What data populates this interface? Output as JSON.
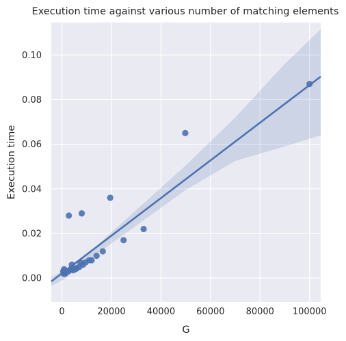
{
  "chart_data": {
    "type": "scatter",
    "title": "Execution time against various number of matching elements",
    "xlabel": "G",
    "ylabel": "Execution time",
    "xlim": [
      -4300,
      104500
    ],
    "ylim": [
      -0.0107,
      0.1145
    ],
    "x_ticks": [
      0,
      20000,
      40000,
      60000,
      80000,
      100000
    ],
    "x_tick_labels": [
      "0",
      "20000",
      "40000",
      "60000",
      "80000",
      "100000"
    ],
    "y_ticks": [
      0.0,
      0.02,
      0.04,
      0.06,
      0.08,
      0.1
    ],
    "y_tick_labels": [
      "0.00",
      "0.02",
      "0.04",
      "0.06",
      "0.08",
      "0.10"
    ],
    "grid": true,
    "points": [
      {
        "x": 500,
        "y": 0.003
      },
      {
        "x": 700,
        "y": 0.002
      },
      {
        "x": 900,
        "y": 0.004
      },
      {
        "x": 1100,
        "y": 0.003
      },
      {
        "x": 1300,
        "y": 0.002
      },
      {
        "x": 1600,
        "y": 0.0025
      },
      {
        "x": 2000,
        "y": 0.003
      },
      {
        "x": 2500,
        "y": 0.003
      },
      {
        "x": 2800,
        "y": 0.028
      },
      {
        "x": 3000,
        "y": 0.0035
      },
      {
        "x": 3600,
        "y": 0.004
      },
      {
        "x": 4000,
        "y": 0.006
      },
      {
        "x": 4500,
        "y": 0.0035
      },
      {
        "x": 5500,
        "y": 0.004
      },
      {
        "x": 6000,
        "y": 0.0045
      },
      {
        "x": 7000,
        "y": 0.005
      },
      {
        "x": 7500,
        "y": 0.007
      },
      {
        "x": 8000,
        "y": 0.029
      },
      {
        "x": 8500,
        "y": 0.006
      },
      {
        "x": 9500,
        "y": 0.007
      },
      {
        "x": 11000,
        "y": 0.008
      },
      {
        "x": 12000,
        "y": 0.008
      },
      {
        "x": 14000,
        "y": 0.01
      },
      {
        "x": 16500,
        "y": 0.012
      },
      {
        "x": 19500,
        "y": 0.036
      },
      {
        "x": 24900,
        "y": 0.017
      },
      {
        "x": 33000,
        "y": 0.022
      },
      {
        "x": 49800,
        "y": 0.065
      },
      {
        "x": 100000,
        "y": 0.087
      }
    ],
    "regression_line": {
      "x": [
        -4300,
        104500
      ],
      "y": [
        -0.0015,
        0.0903
      ]
    },
    "confidence_band": {
      "x": [
        -4300,
        1000,
        10000,
        20000,
        30000,
        50000,
        70000,
        90000,
        104500
      ],
      "upper": [
        0.0005,
        0.0035,
        0.0105,
        0.0205,
        0.0305,
        0.0505,
        0.072,
        0.096,
        0.1115
      ],
      "lower": [
        -0.0035,
        -0.0005,
        0.0075,
        0.0155,
        0.0235,
        0.0395,
        0.0525,
        0.059,
        0.064
      ]
    },
    "colors": {
      "point": "#4c72b0",
      "line": "#4c72b0",
      "band": "#4c72b0",
      "background": "#eaeaf2",
      "grid": "#ffffff"
    }
  }
}
